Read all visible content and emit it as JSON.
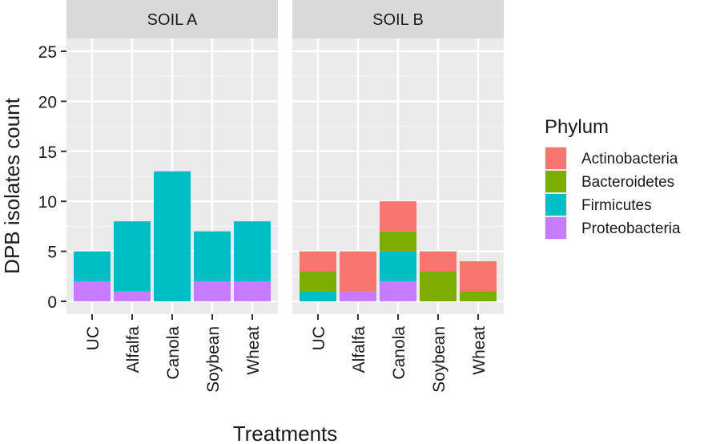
{
  "chart_data": {
    "type": "bar",
    "stacked": true,
    "xlabel": "Treatments",
    "ylabel": "DPB isolates count",
    "ylim": [
      0,
      26
    ],
    "yticks": [
      0,
      5,
      10,
      15,
      20,
      25
    ],
    "grid": true,
    "categories": [
      "UC",
      "Alfalfa",
      "Canola",
      "Soybean",
      "Wheat"
    ],
    "legend": {
      "title": "Phylum",
      "position": "right",
      "entries": [
        {
          "name": "Actinobacteria",
          "color": "#F8766D"
        },
        {
          "name": "Bacteroidetes",
          "color": "#7CAE00"
        },
        {
          "name": "Firmicutes",
          "color": "#00BFC4"
        },
        {
          "name": "Proteobacteria",
          "color": "#C77CFF"
        }
      ]
    },
    "panels": [
      {
        "title": "SOIL A",
        "series": [
          {
            "name": "Actinobacteria",
            "values": [
              0,
              0,
              0,
              0,
              0
            ]
          },
          {
            "name": "Bacteroidetes",
            "values": [
              0,
              0,
              0,
              0,
              0
            ]
          },
          {
            "name": "Firmicutes",
            "values": [
              3,
              7,
              13,
              5,
              6
            ]
          },
          {
            "name": "Proteobacteria",
            "values": [
              2,
              1,
              0,
              2,
              2
            ]
          }
        ]
      },
      {
        "title": "SOIL B",
        "series": [
          {
            "name": "Actinobacteria",
            "values": [
              2,
              4,
              3,
              2,
              3
            ]
          },
          {
            "name": "Bacteroidetes",
            "values": [
              2,
              0,
              2,
              3,
              1
            ]
          },
          {
            "name": "Firmicutes",
            "values": [
              1,
              0,
              3,
              0,
              0
            ]
          },
          {
            "name": "Proteobacteria",
            "values": [
              0,
              1,
              2,
              0,
              0
            ]
          }
        ]
      }
    ]
  }
}
